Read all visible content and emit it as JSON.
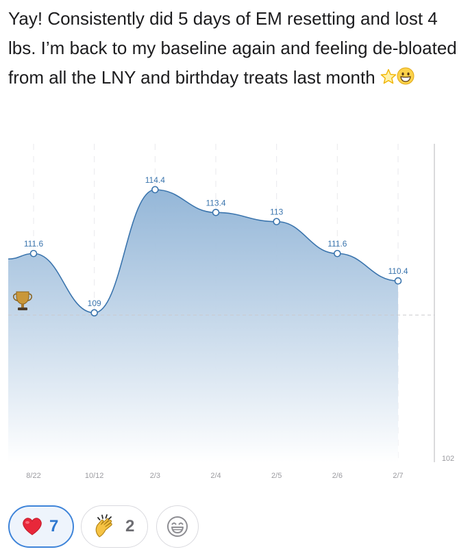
{
  "post": {
    "text": "Yay! Consistently did 5 days of EM resetting and lost 4 lbs. I’m back to my baseline again and feeling de-bloated from all the LNY and birthday treats last month",
    "trailing_icons": [
      "star-icon",
      "grinning-face-icon"
    ]
  },
  "chart_data": {
    "type": "area",
    "categories": [
      "8/22",
      "10/12",
      "2/3",
      "2/4",
      "2/5",
      "2/6",
      "2/7"
    ],
    "values": [
      111.6,
      109,
      114.4,
      113.4,
      113,
      111.6,
      110.4
    ],
    "y_axis_label": "102",
    "goal_line": 108.9,
    "goal_icon": "trophy-icon",
    "grid": true,
    "colors": {
      "line": "#3a74ad",
      "fill_top": "#8fb3d6",
      "fill_bottom": "#ffffff",
      "label": "#3a74ad",
      "axis_text": "#9a9a9f"
    }
  },
  "reactions": {
    "heart": {
      "icon": "red-heart-icon",
      "count": "7",
      "selected": true
    },
    "clap": {
      "icon": "clapping-hands-icon",
      "count": "2"
    },
    "add": {
      "icon": "add-reaction-smiley-icon"
    }
  }
}
